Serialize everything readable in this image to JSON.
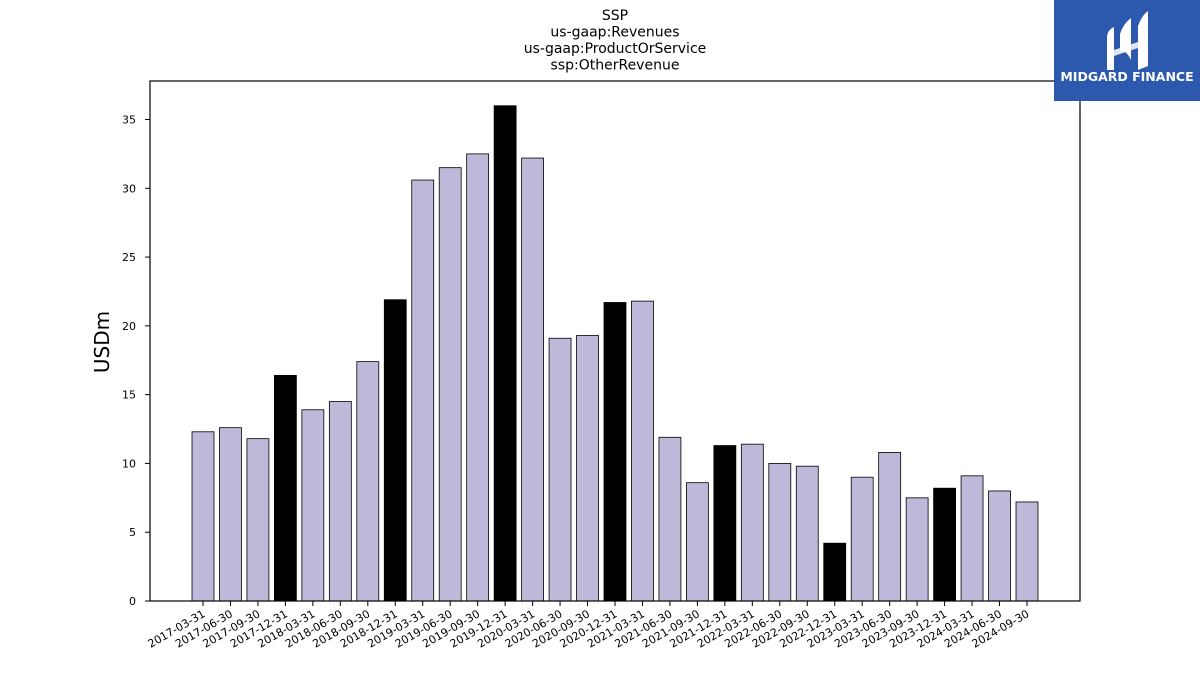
{
  "chart_data": {
    "type": "bar",
    "title_lines": [
      "SSP",
      "us-gaap:Revenues",
      "us-gaap:ProductOrService",
      "ssp:OtherRevenue"
    ],
    "ylabel": "USDm",
    "xlabel": "",
    "ylim": [
      0,
      37.8
    ],
    "yticks": [
      0,
      5,
      10,
      15,
      20,
      25,
      30,
      35
    ],
    "categories": [
      "2017-03-31",
      "2017-06-30",
      "2017-09-30",
      "2017-12-31",
      "2018-03-31",
      "2018-06-30",
      "2018-09-30",
      "2018-12-31",
      "2019-03-31",
      "2019-06-30",
      "2019-09-30",
      "2019-12-31",
      "2020-03-31",
      "2020-06-30",
      "2020-09-30",
      "2020-12-31",
      "2021-03-31",
      "2021-06-30",
      "2021-09-30",
      "2021-12-31",
      "2022-03-31",
      "2022-06-30",
      "2022-09-30",
      "2022-12-31",
      "2023-03-31",
      "2023-06-30",
      "2023-09-30",
      "2023-12-31",
      "2024-03-31",
      "2024-06-30",
      "2024-09-30"
    ],
    "values": [
      12.3,
      12.6,
      11.8,
      16.4,
      13.9,
      14.5,
      17.4,
      21.9,
      30.6,
      31.5,
      32.5,
      36.0,
      32.2,
      19.1,
      19.3,
      21.7,
      21.8,
      11.9,
      8.6,
      11.3,
      11.4,
      10.0,
      9.8,
      4.2,
      9.0,
      10.8,
      7.5,
      8.2,
      9.1,
      8.0,
      7.2
    ],
    "grid": false,
    "colors": {
      "bar": "#bcb9d9",
      "highlight": "#000000",
      "edge": "#000000"
    },
    "highlight_categories": [
      "2017-12-31",
      "2018-12-31",
      "2019-12-31",
      "2020-12-31",
      "2021-12-31",
      "2022-12-31",
      "2023-12-31"
    ]
  },
  "logo": {
    "text": "MIDGARD FINANCE",
    "background": "#2c58ad"
  }
}
